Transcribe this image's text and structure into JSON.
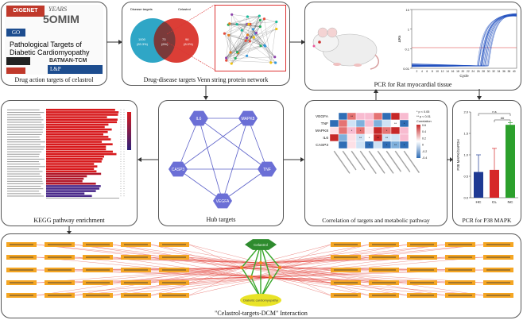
{
  "panels": {
    "drug": {
      "caption": "Drug action targets of celastrol",
      "logos": [
        "DIGENET",
        "YEARS",
        "5OMIM",
        "GO",
        "Pathological Targets of",
        "Diabetic Cardiomyopathy",
        "BATMAN-TCM",
        "L&P"
      ]
    },
    "venn": {
      "caption": "Drug-disease targets Venn string protein network",
      "left_label": "Disease targets",
      "right_label": "Celastrol",
      "left_value": "1000",
      "left_pct": "(83.3%)",
      "mid_value": "73",
      "mid_pct": "(6%)",
      "right_value": "96",
      "right_pct": "(8.0%)"
    },
    "pcr_rat": {
      "caption": "PCR for Rat myocardial tissue",
      "xlabel": "Cycle",
      "ylabel": "ΔRn",
      "legend": "Target 1",
      "y_ticks": [
        "10",
        "1",
        "0.1",
        "0.01"
      ],
      "x_ticks": [
        "2",
        "4",
        "6",
        "8",
        "10",
        "12",
        "14",
        "16",
        "18",
        "20",
        "22",
        "24",
        "26",
        "28",
        "30",
        "32",
        "34",
        "36",
        "38",
        "40"
      ]
    },
    "kegg": {
      "caption": "KEGG pathway enrichment"
    },
    "hub": {
      "caption": "Hub targets",
      "nodes": [
        "IL6",
        "MAPK8",
        "TNF",
        "VEGFA",
        "CASP3"
      ]
    },
    "corr": {
      "caption": "Correlation of targets and metabolic pathway",
      "rows": [
        "VEGFA",
        "TNF",
        "MAPK8",
        "IL6",
        "CASP3"
      ],
      "legend_title": "Correlation",
      "legend_p1": "* p < 0.05",
      "legend_p2": "** p < 0.01",
      "scale": [
        "0.6",
        "0.4",
        "0.2",
        "0",
        "-0.2",
        "-0.4"
      ]
    },
    "p38": {
      "caption": "PCR for P38 MAPK",
      "ylabel": "P38 MAPK/GAPDH",
      "sig1": "n.s",
      "sig2": "##"
    },
    "bottom": {
      "caption": "\"Celastrol-targets-DCM\" Interaction",
      "top_node": "Celastrol",
      "bottom_node": "Diabetic cardiomyopathy"
    }
  },
  "chart_data": [
    {
      "type": "bar",
      "title": "PCR for P38 MAPK",
      "ylabel": "P38 MAPK/GAPDH",
      "categories": [
        "HC",
        "CL",
        "NC"
      ],
      "values": [
        0.6,
        0.65,
        1.7
      ],
      "errors": [
        0.4,
        0.5,
        0.05
      ],
      "ylim": [
        0,
        2.0
      ],
      "y_ticks": [
        "0.0",
        "0.5",
        "1.0",
        "1.5",
        "2.0"
      ],
      "colors": [
        "#1f3a93",
        "#d62728",
        "#2ca02c"
      ]
    }
  ],
  "colors": {
    "venn_left": "#2fa6c6",
    "venn_right": "#d9342b",
    "hub_node": "#6b6fd6",
    "bottom_orange": "#f5a623",
    "bottom_red": "#e0322a",
    "bottom_green": "#3aa82c",
    "dcm_yellow": "#e9e327"
  }
}
